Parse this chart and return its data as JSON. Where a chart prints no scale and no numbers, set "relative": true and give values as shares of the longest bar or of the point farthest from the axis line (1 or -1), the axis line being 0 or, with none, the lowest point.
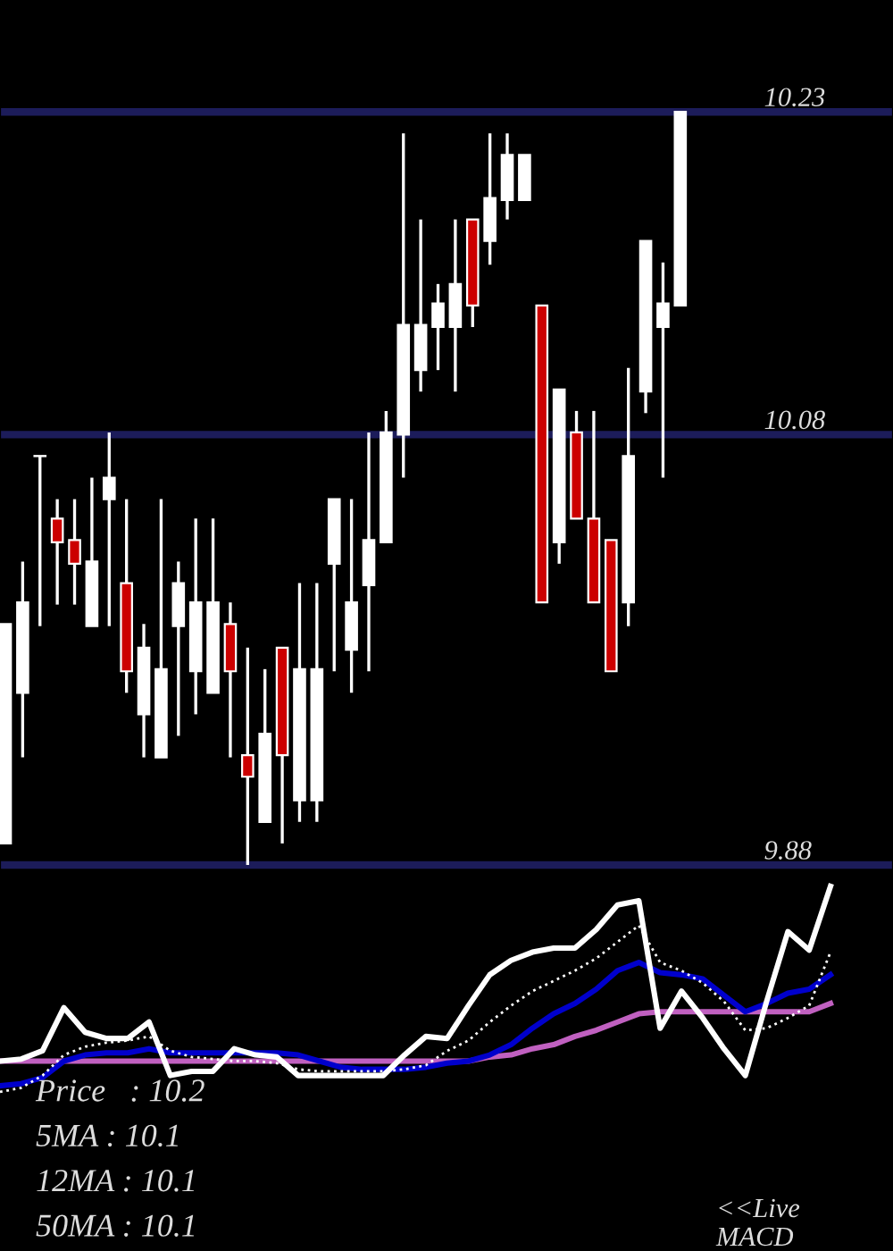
{
  "chart_data": [
    {
      "type": "candlestick",
      "categories": [
        null,
        null,
        null,
        null,
        null,
        null,
        null,
        null,
        null,
        null,
        null,
        null,
        null,
        null,
        null,
        null,
        null,
        null,
        null,
        null,
        null,
        null,
        null,
        null,
        null,
        null,
        null,
        null,
        null,
        null,
        null,
        null,
        null,
        null,
        null,
        null,
        null,
        null,
        null,
        null
      ],
      "ohlc": [
        [
          9.89,
          9.992,
          9.89,
          9.992
        ],
        [
          9.96,
          10.021,
          9.93,
          10.002
        ],
        [
          10.07,
          10.07,
          9.991,
          10.07
        ],
        [
          10.041,
          10.05,
          10.001,
          10.03
        ],
        [
          10.031,
          10.05,
          10.001,
          10.02
        ],
        [
          9.991,
          10.06,
          9.991,
          10.021
        ],
        [
          10.05,
          10.081,
          9.991,
          10.06
        ],
        [
          10.011,
          10.05,
          9.96,
          9.97
        ],
        [
          9.95,
          9.992,
          9.93,
          9.981
        ],
        [
          9.93,
          10.05,
          9.93,
          9.971
        ],
        [
          9.991,
          10.021,
          9.94,
          10.011
        ],
        [
          9.97,
          10.041,
          9.95,
          10.002
        ],
        [
          9.96,
          10.041,
          9.96,
          10.002
        ],
        [
          9.992,
          10.002,
          9.93,
          9.97
        ],
        [
          9.931,
          9.981,
          9.88,
          9.921
        ],
        [
          9.9,
          9.971,
          9.9,
          9.941
        ],
        [
          9.981,
          9.981,
          9.89,
          9.931
        ],
        [
          9.91,
          10.011,
          9.9,
          9.971
        ],
        [
          9.91,
          10.011,
          9.9,
          9.971
        ],
        [
          10.02,
          10.05,
          9.97,
          10.05
        ],
        [
          9.98,
          10.05,
          9.96,
          10.002
        ],
        [
          10.01,
          10.081,
          9.97,
          10.031
        ],
        [
          10.03,
          10.091,
          10.03,
          10.081
        ],
        [
          10.08,
          10.22,
          10.06,
          10.131
        ],
        [
          10.11,
          10.18,
          10.1,
          10.131
        ],
        [
          10.13,
          10.15,
          10.11,
          10.141
        ],
        [
          10.13,
          10.18,
          10.1,
          10.15
        ],
        [
          10.18,
          10.18,
          10.13,
          10.14
        ],
        [
          10.17,
          10.22,
          10.159,
          10.19
        ],
        [
          10.189,
          10.22,
          10.18,
          10.21
        ],
        [
          10.189,
          10.21,
          10.189,
          10.21
        ],
        [
          10.14,
          10.14,
          10.002,
          10.002
        ],
        [
          10.03,
          10.101,
          10.02,
          10.101
        ],
        [
          10.081,
          10.091,
          10.041,
          10.041
        ],
        [
          10.041,
          10.091,
          10.002,
          10.002
        ],
        [
          10.031,
          10.031,
          9.97,
          9.97
        ],
        [
          10.002,
          10.111,
          9.991,
          10.07
        ],
        [
          10.1,
          10.17,
          10.09,
          10.17
        ],
        [
          10.13,
          10.16,
          10.06,
          10.141
        ],
        [
          10.14,
          10.23,
          10.14,
          10.23
        ]
      ],
      "colors": [
        "#ffffff",
        "#ffffff",
        "#ffffff",
        "#cc0000",
        "#cc0000",
        "#ffffff",
        "#ffffff",
        "#cc0000",
        "#ffffff",
        "#ffffff",
        "#ffffff",
        "#ffffff",
        "#ffffff",
        "#cc0000",
        "#cc0000",
        "#ffffff",
        "#cc0000",
        "#ffffff",
        "#ffffff",
        "#ffffff",
        "#ffffff",
        "#ffffff",
        "#ffffff",
        "#ffffff",
        "#ffffff",
        "#ffffff",
        "#ffffff",
        "#cc0000",
        "#ffffff",
        "#ffffff",
        "#ffffff",
        "#cc0000",
        "#ffffff",
        "#cc0000",
        "#cc0000",
        "#cc0000",
        "#ffffff",
        "#ffffff",
        "#ffffff",
        "#ffffff"
      ],
      "ylim": [
        9.875,
        10.282
      ],
      "yticks": [
        9.88,
        10.08,
        10.23
      ],
      "grid": "y",
      "tick_labels": "y"
    },
    {
      "type": "line",
      "relative": true,
      "categories": [
        null,
        null,
        null,
        null,
        null,
        null,
        null,
        null,
        null,
        null,
        null,
        null,
        null,
        null,
        null,
        null,
        null,
        null,
        null,
        null,
        null,
        null,
        null,
        null,
        null,
        null,
        null,
        null,
        null,
        null,
        null,
        null,
        null,
        null,
        null,
        null,
        null,
        null,
        null,
        null
      ],
      "series": [
        {
          "color": "#c060c0",
          "line_style": "solid",
          "values": [
            0.15,
            0.15,
            0.15,
            0.15,
            0.15,
            0.15,
            0.15,
            0.15,
            0.15,
            0.15,
            0.15,
            0.15,
            0.15,
            0.15,
            0.15,
            0.15,
            0.15,
            0.15,
            0.15,
            0.15,
            0.15,
            0.15,
            0.15,
            0.17,
            0.18,
            0.21,
            0.23,
            0.27,
            0.3,
            0.34,
            0.38,
            0.39,
            0.39,
            0.39,
            0.39,
            0.39,
            0.39,
            0.39,
            0.39,
            0.43
          ]
        },
        {
          "color": "#0000cc",
          "line_style": "solid",
          "values": [
            0.03,
            0.04,
            0.07,
            0.15,
            0.18,
            0.19,
            0.19,
            0.21,
            0.19,
            0.19,
            0.19,
            0.19,
            0.19,
            0.19,
            0.18,
            0.15,
            0.12,
            0.11,
            0.11,
            0.11,
            0.12,
            0.14,
            0.15,
            0.18,
            0.23,
            0.31,
            0.38,
            0.43,
            0.5,
            0.59,
            0.63,
            0.58,
            0.57,
            0.55,
            0.47,
            0.39,
            0.43,
            0.48,
            0.5,
            0.57
          ]
        },
        {
          "color": "#ffffff",
          "line_style": "dotted",
          "values": [
            0,
            0.02,
            0.08,
            0.18,
            0.22,
            0.24,
            0.25,
            0.27,
            0.2,
            0.17,
            0.16,
            0.15,
            0.15,
            0.14,
            0.11,
            0.1,
            0.1,
            0.1,
            0.1,
            0.11,
            0.13,
            0.2,
            0.25,
            0.34,
            0.42,
            0.49,
            0.54,
            0.59,
            0.65,
            0.73,
            0.81,
            0.63,
            0.59,
            0.53,
            0.44,
            0.3,
            0.31,
            0.36,
            0.42,
            0.68
          ]
        },
        {
          "color": "#ffffff",
          "line_style": "solid",
          "values": [
            0.15,
            0.16,
            0.2,
            0.41,
            0.29,
            0.26,
            0.26,
            0.34,
            0.08,
            0.1,
            0.1,
            0.21,
            0.18,
            0.17,
            0.08,
            0.08,
            0.08,
            0.08,
            0.08,
            0.18,
            0.27,
            0.26,
            0.42,
            0.57,
            0.64,
            0.68,
            0.7,
            0.7,
            0.79,
            0.91,
            0.93,
            0.31,
            0.49,
            0.36,
            0.21,
            0.08,
            0.44,
            0.78,
            0.69,
            1.0
          ]
        }
      ],
      "annotations": [
        "Price   : 10.2",
        "5MA : 10.1",
        "12MA : 10.1",
        "50MA : 10.1",
        "<<Live\nMACD"
      ],
      "tick_labels": false
    }
  ]
}
